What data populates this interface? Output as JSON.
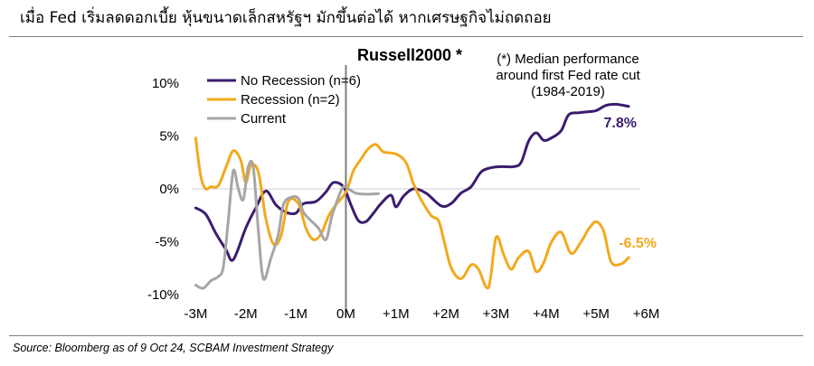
{
  "header": {
    "headline": "เมื่อ Fed เริ่มลดดอกเบี้ย หุ้นขนาดเล็กสหรัฐฯ มักขึ้นต่อได้ หากเศรษฐกิจไม่ถดถอย"
  },
  "footer": {
    "source": "Source: Bloomberg as of 9 Oct 24, SCBAM Investment Strategy"
  },
  "chart_data": {
    "type": "line",
    "title": "Russell2000 *",
    "note_lines": [
      "(*) Median performance",
      "around first Fed rate cut",
      "(1984-2019)"
    ],
    "xlabel": "",
    "ylabel": "",
    "x_tick_labels": [
      "-3M",
      "-2M",
      "-1M",
      "0M",
      "+1M",
      "+2M",
      "+3M",
      "+4M",
      "+5M",
      "+6M"
    ],
    "x_tick_values": [
      -3,
      -2,
      -1,
      0,
      1,
      2,
      3,
      4,
      5,
      6
    ],
    "xlim": [
      -3.08,
      6.1
    ],
    "y_tick_labels": [
      "10%",
      "5%",
      "0%",
      "-5%",
      "-10%"
    ],
    "y_tick_values": [
      10,
      5,
      0,
      -5,
      -10
    ],
    "ylim": [
      -10,
      10
    ],
    "grid": false,
    "legend_position": "top-left",
    "vertical_marker_x": 0,
    "series": [
      {
        "name": "No Recession (n=6)",
        "color": "#3b1d6e",
        "end_label": "7.8%",
        "points": [
          [
            -3.0,
            -1.8
          ],
          [
            -2.8,
            -2.4
          ],
          [
            -2.6,
            -4.2
          ],
          [
            -2.4,
            -5.7
          ],
          [
            -2.25,
            -6.7
          ],
          [
            -2.0,
            -3.7
          ],
          [
            -1.8,
            -1.8
          ],
          [
            -1.6,
            -0.2
          ],
          [
            -1.4,
            -1.5
          ],
          [
            -1.2,
            -2.2
          ],
          [
            -1.0,
            -2.3
          ],
          [
            -0.85,
            -1.4
          ],
          [
            -0.6,
            -1.2
          ],
          [
            -0.4,
            -0.3
          ],
          [
            -0.25,
            0.6
          ],
          [
            -0.05,
            0.2
          ],
          [
            0.1,
            -1.5
          ],
          [
            0.25,
            -3.0
          ],
          [
            0.4,
            -3.1
          ],
          [
            0.55,
            -2.3
          ],
          [
            0.7,
            -1.4
          ],
          [
            0.9,
            -0.6
          ],
          [
            1.0,
            -1.7
          ],
          [
            1.15,
            -0.7
          ],
          [
            1.35,
            0.0
          ],
          [
            1.6,
            -0.4
          ],
          [
            1.9,
            -1.6
          ],
          [
            2.1,
            -1.4
          ],
          [
            2.3,
            -0.4
          ],
          [
            2.5,
            0.2
          ],
          [
            2.7,
            1.6
          ],
          [
            2.9,
            2.0
          ],
          [
            3.1,
            2.1
          ],
          [
            3.35,
            2.1
          ],
          [
            3.5,
            2.5
          ],
          [
            3.65,
            4.5
          ],
          [
            3.8,
            5.3
          ],
          [
            3.95,
            4.6
          ],
          [
            4.1,
            4.8
          ],
          [
            4.3,
            5.5
          ],
          [
            4.45,
            7.0
          ],
          [
            4.65,
            7.2
          ],
          [
            4.85,
            7.3
          ],
          [
            5.0,
            7.4
          ],
          [
            5.2,
            7.9
          ],
          [
            5.4,
            8.0
          ],
          [
            5.65,
            7.8
          ]
        ]
      },
      {
        "name": "Recession (n=2)",
        "color": "#f2a91e",
        "end_label": "-6.5%",
        "points": [
          [
            -3.0,
            4.8
          ],
          [
            -2.9,
            1.2
          ],
          [
            -2.8,
            0.0
          ],
          [
            -2.7,
            0.2
          ],
          [
            -2.55,
            0.3
          ],
          [
            -2.4,
            2.0
          ],
          [
            -2.25,
            3.6
          ],
          [
            -2.1,
            2.7
          ],
          [
            -2.0,
            0.6
          ],
          [
            -1.9,
            2.2
          ],
          [
            -1.75,
            1.6
          ],
          [
            -1.6,
            -2.8
          ],
          [
            -1.45,
            -5.2
          ],
          [
            -1.3,
            -4.5
          ],
          [
            -1.15,
            -1.2
          ],
          [
            -0.95,
            -1.4
          ],
          [
            -0.8,
            -3.7
          ],
          [
            -0.65,
            -4.8
          ],
          [
            -0.5,
            -4.3
          ],
          [
            -0.35,
            -2.6
          ],
          [
            -0.2,
            -1.5
          ],
          [
            0.0,
            -0.3
          ],
          [
            0.15,
            1.7
          ],
          [
            0.3,
            2.8
          ],
          [
            0.45,
            3.8
          ],
          [
            0.6,
            4.2
          ],
          [
            0.75,
            3.5
          ],
          [
            1.0,
            3.3
          ],
          [
            1.2,
            2.5
          ],
          [
            1.35,
            0.5
          ],
          [
            1.5,
            -1.0
          ],
          [
            1.7,
            -2.5
          ],
          [
            1.85,
            -3.0
          ],
          [
            1.95,
            -4.7
          ],
          [
            2.1,
            -7.4
          ],
          [
            2.3,
            -8.5
          ],
          [
            2.5,
            -7.2
          ],
          [
            2.65,
            -7.6
          ],
          [
            2.85,
            -9.3
          ],
          [
            3.0,
            -4.6
          ],
          [
            3.15,
            -6.2
          ],
          [
            3.3,
            -7.6
          ],
          [
            3.45,
            -6.5
          ],
          [
            3.65,
            -5.9
          ],
          [
            3.8,
            -7.8
          ],
          [
            3.95,
            -7.0
          ],
          [
            4.1,
            -5.1
          ],
          [
            4.3,
            -4.1
          ],
          [
            4.5,
            -6.1
          ],
          [
            4.7,
            -5.0
          ],
          [
            4.85,
            -3.8
          ],
          [
            5.0,
            -3.1
          ],
          [
            5.15,
            -4.0
          ],
          [
            5.3,
            -6.9
          ],
          [
            5.5,
            -7.1
          ],
          [
            5.65,
            -6.5
          ]
        ]
      },
      {
        "name": "Current",
        "color": "#a6a6a6",
        "end_label": "",
        "points": [
          [
            -3.0,
            -9.1
          ],
          [
            -2.85,
            -9.4
          ],
          [
            -2.7,
            -8.7
          ],
          [
            -2.55,
            -8.3
          ],
          [
            -2.45,
            -7.4
          ],
          [
            -2.35,
            -3.0
          ],
          [
            -2.25,
            1.7
          ],
          [
            -2.15,
            0.0
          ],
          [
            -2.05,
            -1.0
          ],
          [
            -1.95,
            2.1
          ],
          [
            -1.85,
            2.0
          ],
          [
            -1.75,
            -3.9
          ],
          [
            -1.65,
            -8.5
          ],
          [
            -1.5,
            -6.6
          ],
          [
            -1.35,
            -4.3
          ],
          [
            -1.25,
            -1.5
          ],
          [
            -1.1,
            -0.8
          ],
          [
            -0.95,
            -0.9
          ],
          [
            -0.85,
            -2.2
          ],
          [
            -0.7,
            -3.0
          ],
          [
            -0.55,
            -3.7
          ],
          [
            -0.4,
            -4.8
          ],
          [
            -0.28,
            -2.6
          ],
          [
            -0.15,
            -0.8
          ],
          [
            -0.05,
            0.2
          ],
          [
            0.05,
            0.0
          ],
          [
            0.2,
            -0.4
          ],
          [
            0.4,
            -0.5
          ],
          [
            0.65,
            -0.45
          ]
        ]
      }
    ]
  }
}
